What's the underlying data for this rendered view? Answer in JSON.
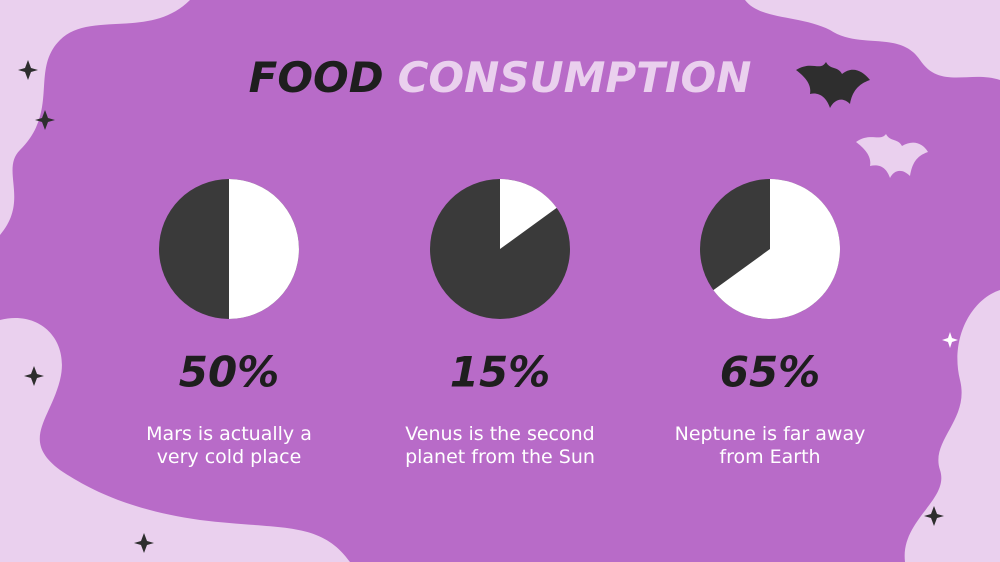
{
  "title": {
    "part1": "FOOD",
    "part2": "CONSUMPTION"
  },
  "chart_data": [
    {
      "type": "pie",
      "values": [
        50
      ],
      "value_labels": [
        "50%"
      ],
      "color": "#ffffff",
      "caption": [
        "Mars is actually a",
        "very cold place"
      ]
    },
    {
      "type": "pie",
      "values": [
        15
      ],
      "value_labels": [
        "15%"
      ],
      "color": "#ffffff",
      "caption": [
        "Venus is the second",
        "planet from the Sun"
      ]
    },
    {
      "type": "pie",
      "values": [
        65
      ],
      "value_labels": [
        "65%"
      ],
      "color": "#ffffff",
      "caption": [
        "Neptune is far away",
        "from Earth"
      ]
    }
  ]
}
